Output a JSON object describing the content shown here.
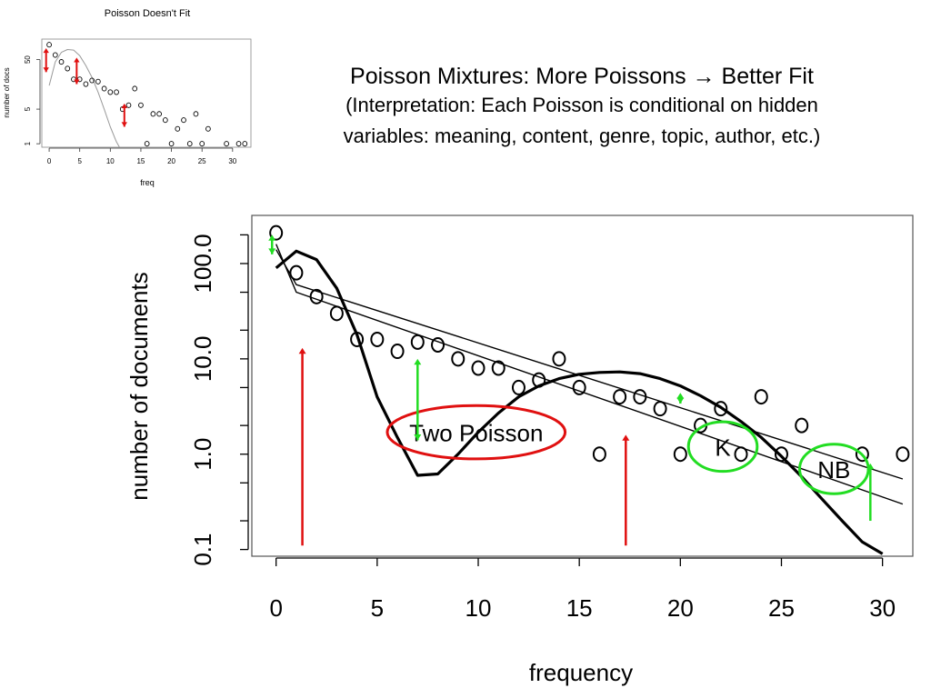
{
  "slide": {
    "title": "Poisson Mixtures: More Poissons → Better Fit",
    "subtitle_line1": "(Interpretation: Each Poisson is conditional on hidden",
    "subtitle_line2": "variables: meaning, content, genre, topic, author, etc.)"
  },
  "colors": {
    "red": "#e01010",
    "green": "#22dd22",
    "black": "#000000",
    "gray": "#999999"
  },
  "chart_data": [
    {
      "id": "main",
      "type": "scatter",
      "title": "",
      "xlabel": "frequency",
      "ylabel": "number of documents",
      "xlim": [
        -1.2,
        31.5
      ],
      "ylim": [
        0.085,
        320
      ],
      "yscale": "log",
      "x_ticks": [
        0,
        5,
        10,
        15,
        20,
        25,
        30
      ],
      "y_ticks": [
        {
          "value": 0.1,
          "label": "0.1"
        },
        {
          "value": 1,
          "label": "1.0"
        },
        {
          "value": 10,
          "label": "10.0"
        },
        {
          "value": 100,
          "label": "100.0"
        }
      ],
      "points": [
        {
          "x": 0,
          "y": 210
        },
        {
          "x": 1,
          "y": 80
        },
        {
          "x": 2,
          "y": 45
        },
        {
          "x": 3,
          "y": 30
        },
        {
          "x": 4,
          "y": 16
        },
        {
          "x": 5,
          "y": 16
        },
        {
          "x": 6,
          "y": 12
        },
        {
          "x": 7,
          "y": 15
        },
        {
          "x": 8,
          "y": 14
        },
        {
          "x": 9,
          "y": 10
        },
        {
          "x": 10,
          "y": 8
        },
        {
          "x": 11,
          "y": 8
        },
        {
          "x": 12,
          "y": 5
        },
        {
          "x": 13,
          "y": 6
        },
        {
          "x": 14,
          "y": 10
        },
        {
          "x": 15,
          "y": 5
        },
        {
          "x": 16,
          "y": 1
        },
        {
          "x": 17,
          "y": 4
        },
        {
          "x": 18,
          "y": 4
        },
        {
          "x": 19,
          "y": 3
        },
        {
          "x": 20,
          "y": 1
        },
        {
          "x": 21,
          "y": 2
        },
        {
          "x": 22,
          "y": 3
        },
        {
          "x": 23,
          "y": 1
        },
        {
          "x": 24,
          "y": 4
        },
        {
          "x": 25,
          "y": 1
        },
        {
          "x": 26,
          "y": 2
        },
        {
          "x": 29,
          "y": 1
        },
        {
          "x": 31,
          "y": 1
        }
      ],
      "series": [
        {
          "style": "thick",
          "points": [
            [
              0,
              90
            ],
            [
              1,
              135
            ],
            [
              2,
              110
            ],
            [
              3,
              55
            ],
            [
              4,
              18
            ],
            [
              5,
              4
            ],
            [
              6,
              1.5
            ],
            [
              7,
              0.6
            ],
            [
              8,
              0.62
            ],
            [
              9,
              1.0
            ],
            [
              10,
              1.7
            ],
            [
              11,
              2.7
            ],
            [
              12,
              4.0
            ],
            [
              13,
              5.2
            ],
            [
              14,
              6.2
            ],
            [
              15,
              6.9
            ],
            [
              16,
              7.2
            ],
            [
              17,
              7.3
            ],
            [
              18,
              7.0
            ],
            [
              19,
              6.2
            ],
            [
              20,
              5.2
            ],
            [
              21,
              4.1
            ],
            [
              22,
              3.1
            ],
            [
              23,
              2.2
            ],
            [
              24,
              1.5
            ],
            [
              25,
              0.95
            ],
            [
              26,
              0.58
            ],
            [
              27,
              0.34
            ],
            [
              28,
              0.2
            ],
            [
              29,
              0.12
            ],
            [
              30,
              0.09
            ]
          ]
        },
        {
          "style": "thin",
          "points": [
            [
              0,
              160
            ],
            [
              1,
              50
            ],
            [
              31,
              0.3
            ]
          ]
        },
        {
          "style": "thin",
          "points": [
            [
              0,
              140
            ],
            [
              1,
              60
            ],
            [
              31,
              0.55
            ]
          ]
        }
      ],
      "annotations": [
        {
          "type": "ellipse",
          "label": "Two Poisson",
          "color": "red",
          "cx": 9.9,
          "cy": 1.7,
          "rx_data": 4.4,
          "ry_log": 0.28
        },
        {
          "type": "ellipse",
          "label": "K",
          "color": "green",
          "cx": 22.1,
          "cy": 1.2,
          "rx_data": 1.7,
          "ry_log": 0.26
        },
        {
          "type": "ellipse",
          "label": "NB",
          "color": "green",
          "cx": 27.6,
          "cy": 0.7,
          "rx_data": 1.7,
          "ry_log": 0.26
        },
        {
          "type": "arrow",
          "color": "red",
          "x": 1.3,
          "y_from": 0.11,
          "y_to": 13,
          "heads": "end"
        },
        {
          "type": "arrow",
          "color": "red",
          "x": 17.3,
          "y_from": 0.11,
          "y_to": 1.6,
          "heads": "end"
        },
        {
          "type": "arrow",
          "color": "green",
          "x": -0.2,
          "y_from": 125,
          "y_to": 200,
          "heads": "both"
        },
        {
          "type": "arrow",
          "color": "green",
          "x": 7,
          "y_from": 1.4,
          "y_to": 10,
          "heads": "both"
        },
        {
          "type": "arrow",
          "color": "green",
          "x": 20,
          "y_from": 3.4,
          "y_to": 4.4,
          "heads": "both"
        },
        {
          "type": "arrow",
          "color": "green",
          "x": 29.4,
          "y_from": 0.2,
          "y_to": 0.8,
          "heads": "end"
        }
      ]
    },
    {
      "id": "inset",
      "type": "scatter",
      "title": "Poisson Doesn't Fit",
      "xlabel": "freq",
      "ylabel": "number of docs",
      "xlim": [
        -1.2,
        33
      ],
      "ylim": [
        0.85,
        130
      ],
      "yscale": "log",
      "x_ticks": [
        0,
        5,
        10,
        15,
        20,
        25,
        30
      ],
      "y_ticks": [
        {
          "value": 1,
          "label": "1"
        },
        {
          "value": 5,
          "label": "5"
        },
        {
          "value": 50,
          "label": "50"
        }
      ],
      "points": [
        {
          "x": 0,
          "y": 100
        },
        {
          "x": 1,
          "y": 62
        },
        {
          "x": 2,
          "y": 45
        },
        {
          "x": 3,
          "y": 33
        },
        {
          "x": 4,
          "y": 20
        },
        {
          "x": 5,
          "y": 20
        },
        {
          "x": 6,
          "y": 16
        },
        {
          "x": 7,
          "y": 19
        },
        {
          "x": 8,
          "y": 18
        },
        {
          "x": 9,
          "y": 13
        },
        {
          "x": 10,
          "y": 11
        },
        {
          "x": 11,
          "y": 11
        },
        {
          "x": 12,
          "y": 5
        },
        {
          "x": 13,
          "y": 6
        },
        {
          "x": 14,
          "y": 13
        },
        {
          "x": 15,
          "y": 6
        },
        {
          "x": 16,
          "y": 1
        },
        {
          "x": 17,
          "y": 4
        },
        {
          "x": 18,
          "y": 4
        },
        {
          "x": 19,
          "y": 3
        },
        {
          "x": 20,
          "y": 1
        },
        {
          "x": 21,
          "y": 2
        },
        {
          "x": 22,
          "y": 3
        },
        {
          "x": 23,
          "y": 1
        },
        {
          "x": 24,
          "y": 4
        },
        {
          "x": 25,
          "y": 1
        },
        {
          "x": 26,
          "y": 2
        },
        {
          "x": 29,
          "y": 1
        },
        {
          "x": 31,
          "y": 1
        },
        {
          "x": 32,
          "y": 1
        }
      ],
      "series": [
        {
          "style": "gray",
          "points": [
            [
              0,
              15
            ],
            [
              1,
              45
            ],
            [
              2,
              70
            ],
            [
              3,
              80
            ],
            [
              4,
              78
            ],
            [
              5,
              60
            ],
            [
              6,
              38
            ],
            [
              7,
              22
            ],
            [
              8,
              11
            ],
            [
              9,
              5
            ],
            [
              10,
              2.2
            ],
            [
              11,
              1.1
            ],
            [
              11.5,
              0.85
            ]
          ]
        }
      ],
      "annotations": [
        {
          "type": "arrow",
          "color": "red",
          "x": -0.5,
          "y_from": 28,
          "y_to": 85,
          "heads": "both"
        },
        {
          "type": "arrow",
          "color": "red",
          "x": 4.5,
          "y_from": 16,
          "y_to": 55,
          "heads": "both"
        },
        {
          "type": "arrow",
          "color": "red",
          "x": 12.3,
          "y_from": 2.2,
          "y_to": 6.5,
          "heads": "both"
        }
      ]
    }
  ]
}
